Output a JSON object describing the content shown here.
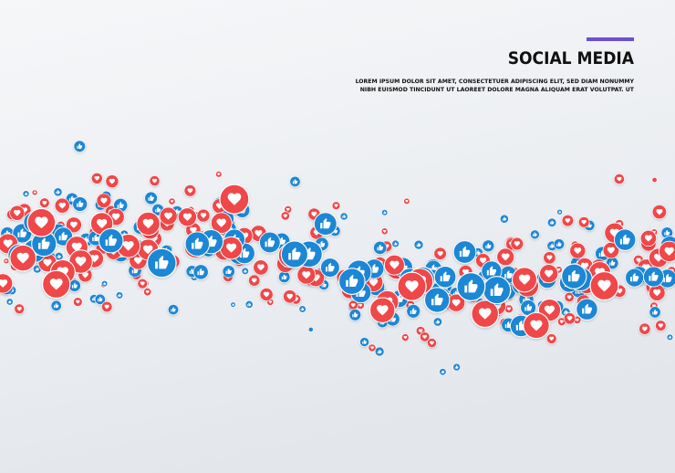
{
  "header": {
    "title": "SOCIAL MEDIA",
    "body_lines": [
      "LOREM IPSUM DOLOR SIT AMET, CONSECTETUER ADIPISCING ELIT, SED DIAM NONUMMY",
      "NIBH EUISMOD TINCIDUNT UT LAOREET DOLORE MAGNA ALIQUAM ERAT VOLUTPAT. UT"
    ]
  }
}
